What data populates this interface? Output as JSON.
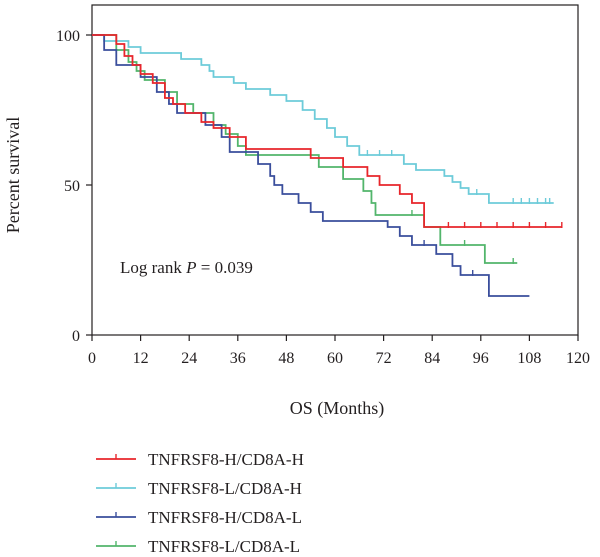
{
  "chart_data": {
    "type": "line",
    "subtype": "kaplan-meier step curve",
    "title": "",
    "xlabel": "OS (Months)",
    "ylabel": "Percent survival",
    "xlim": [
      0,
      120
    ],
    "ylim": [
      0,
      100
    ],
    "xticks": [
      0,
      12,
      24,
      36,
      48,
      60,
      72,
      84,
      96,
      108,
      120
    ],
    "yticks": [
      0,
      50,
      100
    ],
    "grid": false,
    "legend_position": "bottom",
    "annotation": {
      "prefix": "Log rank ",
      "italic": "P",
      "suffix": " = 0.039"
    },
    "series": [
      {
        "name": "TNFRSF8-H/CD8A-H",
        "color": "#e8262b",
        "points": [
          [
            0,
            100
          ],
          [
            6,
            100
          ],
          [
            6,
            97
          ],
          [
            8,
            97
          ],
          [
            8,
            93
          ],
          [
            10,
            93
          ],
          [
            10,
            90
          ],
          [
            12,
            90
          ],
          [
            12,
            87
          ],
          [
            15,
            87
          ],
          [
            15,
            84
          ],
          [
            18,
            84
          ],
          [
            18,
            79
          ],
          [
            20,
            79
          ],
          [
            20,
            77
          ],
          [
            23,
            77
          ],
          [
            23,
            74
          ],
          [
            27,
            74
          ],
          [
            27,
            71
          ],
          [
            30,
            71
          ],
          [
            30,
            69
          ],
          [
            34,
            69
          ],
          [
            34,
            66
          ],
          [
            38,
            66
          ],
          [
            38,
            62
          ],
          [
            54,
            62
          ],
          [
            54,
            59
          ],
          [
            62,
            59
          ],
          [
            62,
            56
          ],
          [
            68,
            56
          ],
          [
            68,
            53
          ],
          [
            71,
            53
          ],
          [
            71,
            50
          ],
          [
            76,
            50
          ],
          [
            76,
            47
          ],
          [
            79,
            47
          ],
          [
            79,
            44
          ],
          [
            82,
            44
          ],
          [
            82,
            36
          ],
          [
            116,
            36
          ]
        ],
        "censored_x": [
          88,
          92,
          96,
          100,
          104,
          108,
          112,
          116
        ]
      },
      {
        "name": "TNFRSF8-L/CD8A-H",
        "color": "#6dcbd9",
        "points": [
          [
            0,
            100
          ],
          [
            3,
            100
          ],
          [
            3,
            98
          ],
          [
            9,
            98
          ],
          [
            9,
            96
          ],
          [
            12,
            96
          ],
          [
            12,
            94
          ],
          [
            22,
            94
          ],
          [
            22,
            92
          ],
          [
            27,
            92
          ],
          [
            27,
            90
          ],
          [
            29,
            90
          ],
          [
            29,
            88
          ],
          [
            30,
            88
          ],
          [
            30,
            86
          ],
          [
            35,
            86
          ],
          [
            35,
            84
          ],
          [
            38,
            84
          ],
          [
            38,
            82
          ],
          [
            44,
            82
          ],
          [
            44,
            80
          ],
          [
            48,
            80
          ],
          [
            48,
            78
          ],
          [
            52,
            78
          ],
          [
            52,
            75
          ],
          [
            55,
            75
          ],
          [
            55,
            72
          ],
          [
            58,
            72
          ],
          [
            58,
            69
          ],
          [
            60,
            69
          ],
          [
            60,
            66
          ],
          [
            63,
            66
          ],
          [
            63,
            63
          ],
          [
            66,
            63
          ],
          [
            66,
            60
          ],
          [
            77,
            60
          ],
          [
            77,
            57
          ],
          [
            80,
            57
          ],
          [
            80,
            55
          ],
          [
            87,
            55
          ],
          [
            87,
            53
          ],
          [
            89,
            53
          ],
          [
            89,
            51
          ],
          [
            91,
            51
          ],
          [
            91,
            49
          ],
          [
            93,
            49
          ],
          [
            93,
            47
          ],
          [
            98,
            47
          ],
          [
            98,
            44
          ],
          [
            114,
            44
          ]
        ],
        "censored_x": [
          68,
          71,
          74,
          95,
          104,
          106,
          108,
          110,
          112,
          113
        ]
      },
      {
        "name": "TNFRSF8-H/CD8A-L",
        "color": "#3a4e9c",
        "points": [
          [
            0,
            100
          ],
          [
            3,
            100
          ],
          [
            3,
            95
          ],
          [
            6,
            95
          ],
          [
            6,
            90
          ],
          [
            12,
            90
          ],
          [
            12,
            86
          ],
          [
            16,
            86
          ],
          [
            16,
            81
          ],
          [
            19,
            81
          ],
          [
            19,
            77
          ],
          [
            21,
            77
          ],
          [
            21,
            74
          ],
          [
            28,
            74
          ],
          [
            28,
            70
          ],
          [
            32,
            70
          ],
          [
            32,
            66
          ],
          [
            34,
            66
          ],
          [
            34,
            61
          ],
          [
            41,
            61
          ],
          [
            41,
            57
          ],
          [
            44,
            57
          ],
          [
            44,
            53
          ],
          [
            45,
            53
          ],
          [
            45,
            50
          ],
          [
            47,
            50
          ],
          [
            47,
            47
          ],
          [
            51,
            47
          ],
          [
            51,
            44
          ],
          [
            54,
            44
          ],
          [
            54,
            41
          ],
          [
            57,
            41
          ],
          [
            57,
            38
          ],
          [
            73,
            38
          ],
          [
            73,
            36
          ],
          [
            76,
            36
          ],
          [
            76,
            33
          ],
          [
            79,
            33
          ],
          [
            79,
            30
          ],
          [
            85,
            30
          ],
          [
            85,
            27
          ],
          [
            89,
            27
          ],
          [
            89,
            23
          ],
          [
            91,
            23
          ],
          [
            91,
            20
          ],
          [
            98,
            20
          ],
          [
            98,
            13
          ],
          [
            108,
            13
          ]
        ],
        "censored_x": [
          82,
          94
        ]
      },
      {
        "name": "TNFRSF8-L/CD8A-L",
        "color": "#52b56b",
        "points": [
          [
            0,
            100
          ],
          [
            6,
            100
          ],
          [
            6,
            95
          ],
          [
            9,
            95
          ],
          [
            9,
            91
          ],
          [
            11,
            91
          ],
          [
            11,
            88
          ],
          [
            13,
            88
          ],
          [
            13,
            85
          ],
          [
            18,
            85
          ],
          [
            18,
            81
          ],
          [
            21,
            81
          ],
          [
            21,
            77
          ],
          [
            25,
            77
          ],
          [
            25,
            74
          ],
          [
            30,
            74
          ],
          [
            30,
            70
          ],
          [
            33,
            70
          ],
          [
            33,
            67
          ],
          [
            36,
            67
          ],
          [
            36,
            63
          ],
          [
            38,
            63
          ],
          [
            38,
            60
          ],
          [
            56,
            60
          ],
          [
            56,
            56
          ],
          [
            62,
            56
          ],
          [
            62,
            52
          ],
          [
            67,
            52
          ],
          [
            67,
            48
          ],
          [
            69,
            48
          ],
          [
            69,
            44
          ],
          [
            70,
            44
          ],
          [
            70,
            40
          ],
          [
            82,
            40
          ],
          [
            82,
            36
          ],
          [
            86,
            36
          ],
          [
            86,
            30
          ],
          [
            97,
            30
          ],
          [
            97,
            24
          ],
          [
            105,
            24
          ]
        ],
        "censored_x": [
          79,
          92,
          104
        ]
      }
    ]
  }
}
